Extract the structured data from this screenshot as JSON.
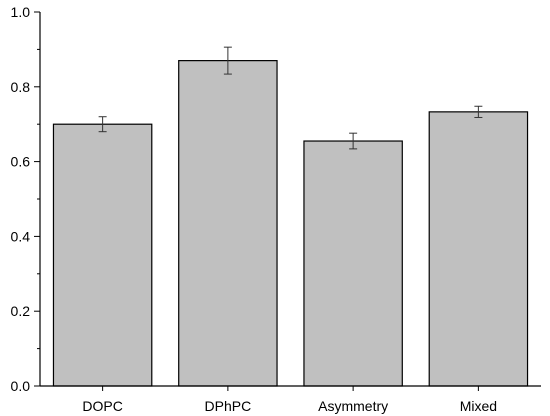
{
  "chart_data": {
    "type": "bar",
    "categories": [
      "DOPC",
      "DPhPC",
      "Asymmetry",
      "Mixed"
    ],
    "values": [
      0.7,
      0.87,
      0.655,
      0.733
    ],
    "errors": [
      0.02,
      0.036,
      0.021,
      0.015
    ],
    "y_tick_values": [
      0.0,
      0.2,
      0.4,
      0.6,
      0.8,
      1.0
    ],
    "y_tick_labels": [
      "0.0",
      "0.2",
      "0.4",
      "0.6",
      "0.8",
      "1.0"
    ],
    "ylim": [
      0,
      1.0
    ],
    "title": "",
    "xlabel": "",
    "ylabel": "",
    "grid": false,
    "bar_color": "#c0c0c0",
    "edge_color": "#000000"
  }
}
